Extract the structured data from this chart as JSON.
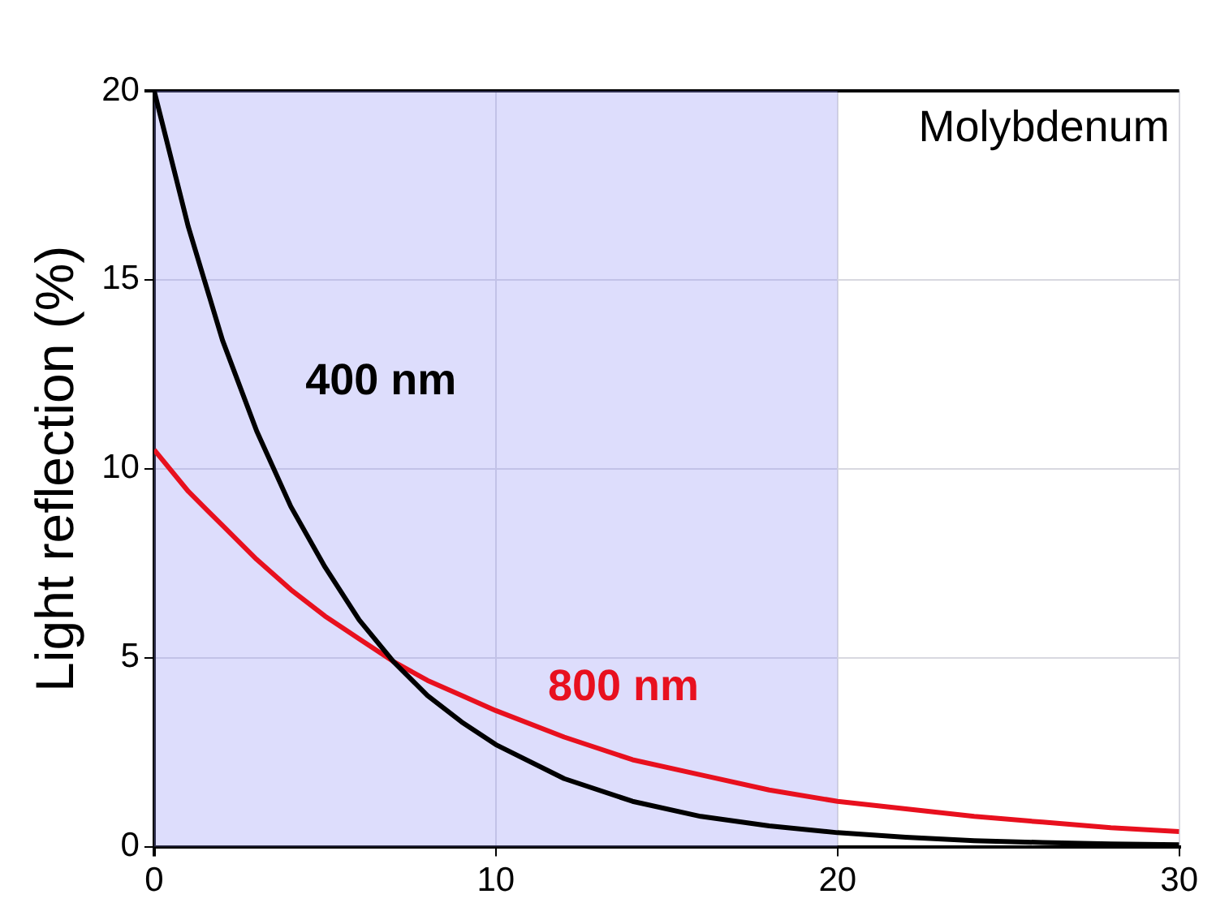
{
  "chart_data": {
    "type": "line",
    "ylabel": "Light reflection (%)",
    "annotations": [
      "Molybdenum"
    ],
    "x": [
      0,
      1,
      2,
      3,
      4,
      5,
      6,
      7,
      8,
      9,
      10,
      12,
      14,
      16,
      18,
      20,
      22,
      24,
      26,
      28,
      30
    ],
    "series": [
      {
        "name": "400 nm",
        "color": "#000000",
        "values": [
          20,
          16.4,
          13.4,
          11,
          9,
          7.4,
          6,
          4.9,
          4,
          3.3,
          2.7,
          1.8,
          1.2,
          0.8,
          0.55,
          0.37,
          0.25,
          0.16,
          0.11,
          0.07,
          0.05
        ]
      },
      {
        "name": "800 nm",
        "color": "#e8101e",
        "values": [
          10.5,
          9.4,
          8.5,
          7.6,
          6.8,
          6.1,
          5.5,
          4.9,
          4.4,
          4,
          3.6,
          2.9,
          2.3,
          1.9,
          1.5,
          1.2,
          1,
          0.8,
          0.65,
          0.5,
          0.4
        ]
      }
    ],
    "bands": [
      {
        "axis": "x",
        "from": 0,
        "to": 20,
        "color": "#9696f5"
      }
    ],
    "xlim": [
      0,
      30
    ],
    "xticks": [
      0,
      10,
      20,
      30
    ],
    "ylim": [
      0,
      20
    ],
    "yticks": [
      0,
      5,
      10,
      15,
      20
    ],
    "grid": true,
    "marker": "none",
    "line_style": "solid"
  }
}
